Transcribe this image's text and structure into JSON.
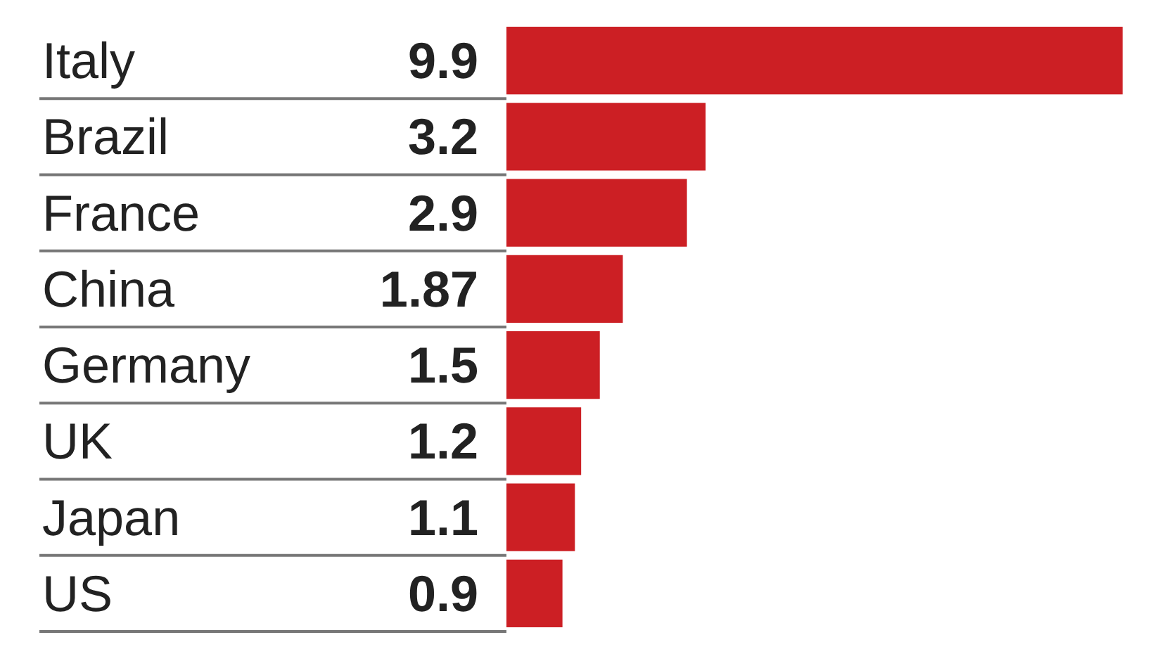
{
  "chart_data": {
    "type": "bar",
    "orientation": "horizontal",
    "categories": [
      "Italy",
      "Brazil",
      "France",
      "China",
      "Germany",
      "UK",
      "Japan",
      "US"
    ],
    "values": [
      9.9,
      3.2,
      2.9,
      1.87,
      1.5,
      1.2,
      1.1,
      0.9
    ],
    "value_labels": [
      "9.9",
      "3.2",
      "2.9",
      "1.87",
      "1.5",
      "1.2",
      "1.1",
      "0.9"
    ],
    "color": "#cc1f24"
  }
}
